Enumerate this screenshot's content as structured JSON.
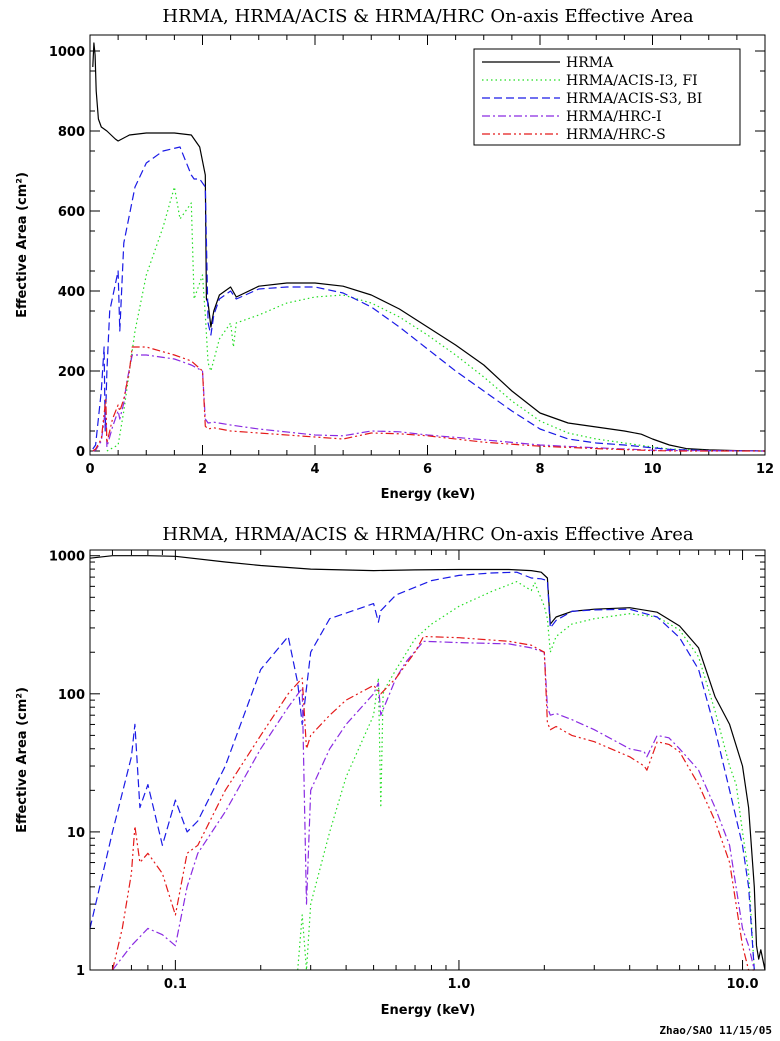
{
  "footer": {
    "credit": "Zhao/SAO  11/15/05"
  },
  "colors": {
    "HRMA": "#000000",
    "ACIS_I3": "#22dd22",
    "ACIS_S3": "#1a1ae6",
    "HRC_I": "#8a2be2",
    "HRC_S": "#e41a1a"
  },
  "chart_data": [
    {
      "type": "line",
      "title": "HRMA, HRMA/ACIS & HRMA/HRC On-axis Effective Area",
      "xlabel": "Energy (keV)",
      "ylabel": "Effective Area  (cm²)",
      "xscale": "linear",
      "yscale": "linear",
      "xlim": [
        0,
        12
      ],
      "ylim": [
        -10,
        1040
      ],
      "xticks": [
        0,
        2,
        4,
        6,
        8,
        10,
        12
      ],
      "xtick_labels": [
        "0",
        "2",
        "4",
        "6",
        "8",
        "10",
        "12"
      ],
      "yticks": [
        0,
        200,
        400,
        600,
        800,
        1000
      ],
      "ytick_labels": [
        "0",
        "200",
        "400",
        "600",
        "800",
        "1000"
      ],
      "legend": {
        "placement": "top-right",
        "entries": [
          "HRMA",
          "HRMA/ACIS-I3, FI",
          "HRMA/ACIS-S3, BI",
          "HRMA/HRC-I",
          "HRMA/HRC-S"
        ]
      },
      "series": [
        {
          "name": "HRMA",
          "style": "solid",
          "color": "#000000",
          "x": [
            0.05,
            0.07,
            0.09,
            0.11,
            0.15,
            0.2,
            0.3,
            0.45,
            0.5,
            0.7,
            1.0,
            1.5,
            1.8,
            1.95,
            2.05,
            2.07,
            2.1,
            2.15,
            2.2,
            2.3,
            2.5,
            2.6,
            3.0,
            3.5,
            4.0,
            4.5,
            5.0,
            5.5,
            6.0,
            6.5,
            7.0,
            7.5,
            8.0,
            8.5,
            9.0,
            9.5,
            9.8,
            10.0,
            10.3,
            10.6,
            11.0,
            11.5,
            12.0
          ],
          "y": [
            960,
            1020,
            990,
            900,
            830,
            810,
            800,
            780,
            775,
            790,
            795,
            795,
            790,
            760,
            690,
            380,
            370,
            310,
            350,
            390,
            410,
            385,
            412,
            420,
            420,
            412,
            390,
            355,
            310,
            265,
            215,
            150,
            95,
            70,
            60,
            50,
            42,
            30,
            15,
            6,
            3,
            1,
            0
          ]
        },
        {
          "name": "HRMA/ACIS-I3, FI",
          "style": "dotted",
          "color": "#22dd22",
          "x": [
            0.3,
            0.5,
            0.6,
            0.8,
            1.0,
            1.3,
            1.5,
            1.6,
            1.8,
            1.85,
            2.0,
            2.05,
            2.1,
            2.15,
            2.3,
            2.5,
            2.55,
            2.6,
            3.0,
            3.5,
            4.0,
            4.5,
            5.0,
            5.5,
            6.0,
            6.5,
            7.0,
            7.5,
            8.0,
            8.5,
            9.0,
            9.5,
            10.0,
            10.3,
            11.0,
            12.0
          ],
          "y": [
            0,
            15,
            100,
            300,
            440,
            560,
            660,
            580,
            620,
            380,
            440,
            340,
            220,
            200,
            280,
            320,
            260,
            320,
            340,
            370,
            385,
            390,
            370,
            335,
            290,
            240,
            185,
            125,
            75,
            45,
            30,
            20,
            10,
            5,
            1,
            0
          ]
        },
        {
          "name": "HRMA/ACIS-S3, BI",
          "style": "dashed",
          "color": "#1a1ae6",
          "x": [
            0.05,
            0.1,
            0.2,
            0.25,
            0.27,
            0.3,
            0.35,
            0.5,
            0.53,
            0.6,
            0.8,
            1.0,
            1.3,
            1.6,
            1.8,
            1.85,
            1.95,
            2.05,
            2.1,
            2.15,
            2.2,
            2.3,
            2.5,
            2.6,
            3.0,
            3.5,
            4.0,
            4.5,
            5.0,
            5.5,
            6.0,
            6.5,
            7.0,
            7.5,
            8.0,
            8.5,
            9.0,
            9.5,
            10.0,
            10.3,
            11.0,
            12.0
          ],
          "y": [
            5,
            15,
            150,
            260,
            50,
            200,
            350,
            450,
            300,
            520,
            660,
            720,
            750,
            760,
            690,
            680,
            680,
            660,
            320,
            290,
            340,
            380,
            400,
            380,
            405,
            410,
            410,
            395,
            360,
            310,
            255,
            200,
            150,
            100,
            55,
            30,
            20,
            15,
            8,
            4,
            1,
            0
          ]
        },
        {
          "name": "HRMA/HRC-I",
          "style": "dashdot",
          "color": "#8a2be2",
          "x": [
            0.05,
            0.1,
            0.2,
            0.28,
            0.3,
            0.4,
            0.5,
            0.53,
            0.6,
            0.65,
            0.75,
            1.0,
            1.5,
            1.8,
            2.0,
            2.05,
            2.1,
            2.2,
            2.5,
            3.0,
            4.0,
            4.5,
            5.0,
            5.5,
            6.0,
            7.0,
            8.0,
            9.0,
            10.0,
            10.5,
            12.0
          ],
          "y": [
            0,
            2,
            25,
            110,
            10,
            60,
            100,
            80,
            120,
            170,
            240,
            240,
            230,
            215,
            200,
            80,
            70,
            72,
            65,
            55,
            40,
            38,
            50,
            48,
            40,
            28,
            15,
            8,
            2,
            1,
            0
          ]
        },
        {
          "name": "HRMA/HRC-S",
          "style": "dashdotdot",
          "color": "#e41a1a",
          "x": [
            0.05,
            0.1,
            0.2,
            0.28,
            0.3,
            0.4,
            0.5,
            0.53,
            0.6,
            0.7,
            0.75,
            1.0,
            1.5,
            1.8,
            2.0,
            2.05,
            2.1,
            2.2,
            2.5,
            3.0,
            4.0,
            4.5,
            5.0,
            5.5,
            6.0,
            7.0,
            8.0,
            9.0,
            10.0,
            10.5,
            12.0
          ],
          "y": [
            0,
            5,
            30,
            130,
            20,
            80,
            115,
            100,
            130,
            200,
            260,
            260,
            240,
            225,
            200,
            62,
            55,
            58,
            50,
            45,
            35,
            30,
            45,
            43,
            38,
            22,
            12,
            6,
            1,
            0,
            0
          ]
        }
      ]
    },
    {
      "type": "line",
      "title": "HRMA, HRMA/ACIS & HRMA/HRC On-axis Effective Area",
      "xlabel": "Energy (keV)",
      "ylabel": "Effective Area  (cm²)",
      "xscale": "log",
      "yscale": "log",
      "xlim": [
        0.05,
        12
      ],
      "ylim": [
        1,
        1100
      ],
      "xticks": [
        0.1,
        1.0,
        10.0
      ],
      "xtick_labels": [
        "0.1",
        "1.0",
        "10.0"
      ],
      "yticks": [
        1,
        10,
        100,
        1000
      ],
      "ytick_labels": [
        "1",
        "10",
        "100",
        "1000"
      ],
      "series": [
        {
          "name": "HRMA",
          "style": "solid",
          "color": "#000000",
          "x": [
            0.05,
            0.06,
            0.08,
            0.1,
            0.15,
            0.2,
            0.3,
            0.5,
            0.7,
            1.0,
            1.5,
            1.8,
            1.95,
            2.05,
            2.1,
            2.2,
            2.5,
            3.0,
            4.0,
            5.0,
            6.0,
            7.0,
            8.0,
            9.0,
            10.0,
            10.5,
            11.0,
            11.2,
            11.4,
            11.6,
            12.0
          ],
          "y": [
            960,
            1000,
            1000,
            990,
            900,
            850,
            800,
            780,
            790,
            795,
            795,
            780,
            760,
            690,
            320,
            360,
            395,
            410,
            420,
            390,
            310,
            215,
            95,
            60,
            30,
            15,
            4,
            1.5,
            1.2,
            1.4,
            1
          ]
        },
        {
          "name": "HRMA/ACIS-I3, FI",
          "style": "dotted",
          "color": "#22dd22",
          "x": [
            0.27,
            0.28,
            0.29,
            0.3,
            0.35,
            0.4,
            0.5,
            0.52,
            0.53,
            0.54,
            0.55,
            0.6,
            0.7,
            0.8,
            1.0,
            1.3,
            1.6,
            1.8,
            1.85,
            2.0,
            2.05,
            2.1,
            2.2,
            2.5,
            3.0,
            4.0,
            5.0,
            6.0,
            7.0,
            8.0,
            9.0,
            9.5,
            10.0,
            10.5,
            11.0
          ],
          "y": [
            1,
            2.5,
            1,
            3,
            10,
            25,
            70,
            130,
            15,
            100,
            110,
            150,
            250,
            320,
            430,
            550,
            650,
            560,
            640,
            430,
            350,
            200,
            260,
            320,
            350,
            380,
            360,
            290,
            185,
            75,
            30,
            22,
            10,
            5,
            1
          ]
        },
        {
          "name": "HRMA/ACIS-S3, BI",
          "style": "dashed",
          "color": "#1a1ae6",
          "x": [
            0.05,
            0.06,
            0.07,
            0.072,
            0.075,
            0.08,
            0.09,
            0.1,
            0.11,
            0.12,
            0.15,
            0.2,
            0.25,
            0.27,
            0.28,
            0.3,
            0.35,
            0.5,
            0.52,
            0.53,
            0.6,
            0.8,
            1.0,
            1.3,
            1.6,
            1.8,
            1.95,
            2.05,
            2.1,
            2.2,
            2.5,
            3.0,
            4.0,
            5.0,
            6.0,
            7.0,
            8.0,
            9.0,
            10.0,
            10.5,
            11.0
          ],
          "y": [
            2,
            10,
            35,
            60,
            15,
            22,
            8,
            17,
            10,
            12,
            30,
            150,
            260,
            120,
            60,
            200,
            350,
            450,
            330,
            400,
            520,
            660,
            720,
            750,
            760,
            690,
            680,
            660,
            300,
            340,
            395,
            405,
            410,
            360,
            255,
            150,
            55,
            20,
            8,
            4,
            1
          ]
        },
        {
          "name": "HRMA/HRC-I",
          "style": "dashdot",
          "color": "#8a2be2",
          "x": [
            0.06,
            0.07,
            0.08,
            0.09,
            0.1,
            0.11,
            0.12,
            0.15,
            0.2,
            0.25,
            0.28,
            0.29,
            0.3,
            0.35,
            0.4,
            0.5,
            0.52,
            0.53,
            0.6,
            0.65,
            0.75,
            1.0,
            1.5,
            1.8,
            2.0,
            2.05,
            2.1,
            2.2,
            2.5,
            3.0,
            4.0,
            4.5,
            4.6,
            5.0,
            5.5,
            6.0,
            7.0,
            8.0,
            9.0,
            10.0,
            10.5,
            11.0
          ],
          "y": [
            1,
            1.5,
            2,
            1.8,
            1.5,
            4,
            7,
            14,
            40,
            80,
            110,
            3,
            20,
            40,
            60,
            100,
            120,
            70,
            130,
            170,
            240,
            235,
            230,
            215,
            200,
            80,
            70,
            72,
            65,
            55,
            40,
            38,
            35,
            50,
            48,
            40,
            28,
            15,
            8,
            2,
            1.5,
            1
          ]
        },
        {
          "name": "HRMA/HRC-S",
          "style": "dashdotdot",
          "color": "#e41a1a",
          "x": [
            0.06,
            0.065,
            0.07,
            0.072,
            0.075,
            0.08,
            0.09,
            0.1,
            0.11,
            0.12,
            0.15,
            0.2,
            0.25,
            0.28,
            0.29,
            0.3,
            0.35,
            0.4,
            0.5,
            0.53,
            0.6,
            0.7,
            0.75,
            1.0,
            1.5,
            1.8,
            2.0,
            2.05,
            2.1,
            2.2,
            2.5,
            3.0,
            4.0,
            4.5,
            4.6,
            5.0,
            5.5,
            6.0,
            7.0,
            8.0,
            9.0,
            10.0,
            10.5,
            11.0
          ],
          "y": [
            1,
            2,
            5,
            11,
            6,
            7,
            5,
            2.5,
            7,
            8,
            20,
            50,
            100,
            130,
            40,
            50,
            70,
            90,
            115,
            100,
            130,
            200,
            260,
            255,
            240,
            225,
            200,
            62,
            55,
            58,
            50,
            45,
            35,
            30,
            28,
            45,
            43,
            38,
            22,
            12,
            6,
            1.5,
            1,
            0.9
          ]
        }
      ]
    }
  ]
}
